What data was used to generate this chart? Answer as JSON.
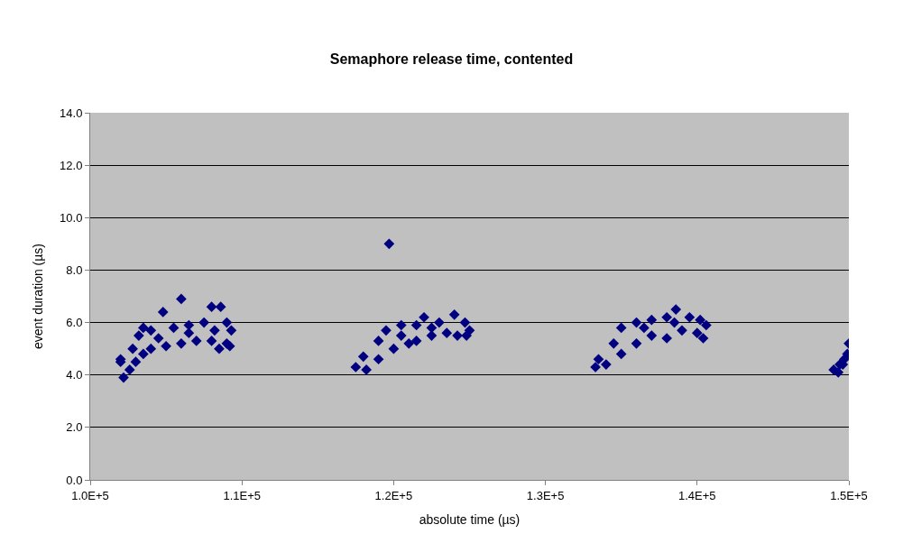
{
  "chart_data": {
    "type": "scatter",
    "title": "Semaphore release time, contented",
    "xlabel": "absolute time (µs)",
    "ylabel": "event duration (µs)",
    "x": [
      102000,
      102200,
      102600,
      103000,
      103500,
      104000,
      105000,
      106000,
      107000,
      108000,
      108500,
      109000,
      109200,
      102000,
      102800,
      103200,
      103500,
      104000,
      104800,
      105500,
      106000,
      106500,
      107500,
      108000,
      108600,
      109000,
      109300,
      104500,
      106500,
      108200,
      117500,
      118200,
      119000,
      120000,
      121000,
      121500,
      122500,
      123500,
      124200,
      124800,
      118000,
      119000,
      119500,
      119700,
      120500,
      121500,
      122000,
      123000,
      124000,
      124700,
      125000,
      120500,
      122500,
      133300,
      134000,
      135000,
      136000,
      137000,
      138000,
      139000,
      140000,
      140400,
      133500,
      134500,
      135000,
      136000,
      137000,
      138000,
      138600,
      139500,
      140200,
      140600,
      136500,
      138500,
      149000,
      149300,
      149600,
      149900,
      150000,
      149700,
      149400
    ],
    "values": [
      4.5,
      3.9,
      4.2,
      4.5,
      4.8,
      5.0,
      5.1,
      5.2,
      5.3,
      5.3,
      5.0,
      5.2,
      5.1,
      4.6,
      5.0,
      5.5,
      5.8,
      5.7,
      6.4,
      5.8,
      6.9,
      5.9,
      6.0,
      6.6,
      6.6,
      6.0,
      5.7,
      5.4,
      5.6,
      5.7,
      4.3,
      4.2,
      4.6,
      5.0,
      5.2,
      5.3,
      5.5,
      5.6,
      5.5,
      5.5,
      4.7,
      5.3,
      5.7,
      9.0,
      5.9,
      5.9,
      6.2,
      6.0,
      6.3,
      6.0,
      5.7,
      5.5,
      5.8,
      4.3,
      4.4,
      4.8,
      5.2,
      5.5,
      5.4,
      5.7,
      5.6,
      5.4,
      4.6,
      5.2,
      5.8,
      6.0,
      6.1,
      6.2,
      6.5,
      6.2,
      6.1,
      5.9,
      5.8,
      6.0,
      4.2,
      4.1,
      4.4,
      4.8,
      5.2,
      4.6,
      4.4
    ],
    "color": "#000080",
    "marker": "diamond",
    "xlim": [
      100000,
      150000
    ],
    "xticks": [
      {
        "value": 100000,
        "label": "1.0E+5"
      },
      {
        "value": 110000,
        "label": "1.1E+5"
      },
      {
        "value": 120000,
        "label": "1.2E+5"
      },
      {
        "value": 130000,
        "label": "1.3E+5"
      },
      {
        "value": 140000,
        "label": "1.4E+5"
      },
      {
        "value": 150000,
        "label": "1.5E+5"
      }
    ],
    "ylim": [
      0,
      14
    ],
    "yticks": [
      {
        "value": 0,
        "label": "0.0"
      },
      {
        "value": 2,
        "label": "2.0"
      },
      {
        "value": 4,
        "label": "4.0"
      },
      {
        "value": 6,
        "label": "6.0"
      },
      {
        "value": 8,
        "label": "8.0"
      },
      {
        "value": 10,
        "label": "10.0"
      },
      {
        "value": 12,
        "label": "12.0"
      },
      {
        "value": 14,
        "label": "14.0"
      }
    ],
    "grid": "y",
    "legend": false
  }
}
